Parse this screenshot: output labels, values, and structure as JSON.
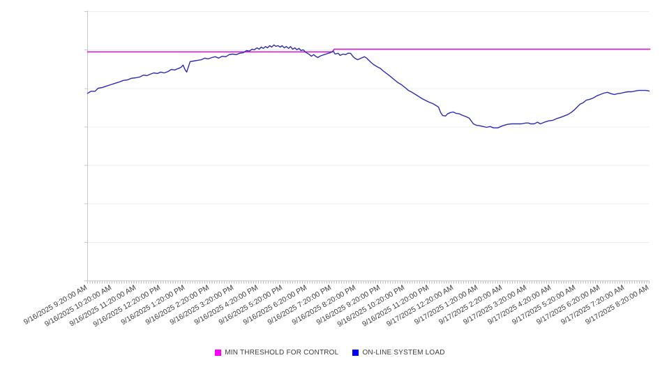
{
  "legend": {
    "items": [
      {
        "id": "threshold",
        "label": "MIN THRESHOLD FOR CONTROL",
        "swatch_color": "#ff00ff"
      },
      {
        "id": "load",
        "label": "ON-LINE SYSTEM LOAD",
        "swatch_color": "#0000ff"
      }
    ]
  },
  "chart_data": {
    "type": "line",
    "title": "",
    "xlabel": "",
    "ylabel": "",
    "grid": true,
    "legend_position": "bottom",
    "y_axis_labels_visible": false,
    "ylim": [
      0,
      100
    ],
    "x_hours_range": [
      0,
      23
    ],
    "x_tick_labels": [
      "9/16/2025 9:20:00 AM",
      "9/16/2025 10:20:00 AM",
      "9/16/2025 11:20:00 AM",
      "9/16/2025 12:20:00 PM",
      "9/16/2025 1:20:00 PM",
      "9/16/2025 2:20:00 PM",
      "9/16/2025 3:20:00 PM",
      "9/16/2025 4:20:00 PM",
      "9/16/2025 5:20:00 PM",
      "9/16/2025 6:20:00 PM",
      "9/16/2025 7:20:00 PM",
      "9/16/2025 8:20:00 PM",
      "9/16/2025 9:20:00 PM",
      "9/16/2025 10:20:00 PM",
      "9/16/2025 11:20:00 PM",
      "9/17/2025 12:20:00 AM",
      "9/17/2025 1:20:00 AM",
      "9/17/2025 2:20:00 AM",
      "9/17/2025 3:20:00 AM",
      "9/17/2025 4:20:00 AM",
      "9/17/2025 5:20:00 AM",
      "9/17/2025 6:20:00 AM",
      "9/17/2025 7:20:00 AM",
      "9/17/2025 8:20:00 AM"
    ],
    "colors": {
      "grid": "#ededed",
      "axis": "#c9c9c9",
      "tick": "#bdbdbd",
      "label": "#3c3c3c",
      "threshold_line": "#cc2fcc",
      "load_line": "#2b2bb8"
    },
    "series": [
      {
        "id": "threshold",
        "name": "MIN THRESHOLD FOR CONTROL",
        "color": "#cc2fcc",
        "width": 1.8,
        "points": [
          [
            0,
            85.0
          ],
          [
            10.03,
            85.0
          ],
          [
            10.1,
            86.0
          ],
          [
            23.03,
            86.0
          ]
        ]
      },
      {
        "id": "load",
        "name": "ON-LINE SYSTEM LOAD",
        "color": "#2b2bb8",
        "width": 1.4,
        "points": [
          [
            0,
            69.6
          ],
          [
            0.14,
            70.4
          ],
          [
            0.31,
            70.4
          ],
          [
            0.43,
            71.5
          ],
          [
            0.6,
            71.8
          ],
          [
            0.77,
            72.3
          ],
          [
            0.94,
            72.8
          ],
          [
            1.11,
            73.3
          ],
          [
            1.29,
            73.8
          ],
          [
            1.46,
            74.4
          ],
          [
            1.63,
            74.6
          ],
          [
            1.8,
            75.2
          ],
          [
            1.97,
            75.4
          ],
          [
            2.14,
            75.7
          ],
          [
            2.29,
            76.4
          ],
          [
            2.43,
            76.2
          ],
          [
            2.57,
            76.7
          ],
          [
            2.71,
            77.2
          ],
          [
            2.86,
            77.0
          ],
          [
            3.0,
            77.5
          ],
          [
            3.14,
            77.2
          ],
          [
            3.29,
            77.7
          ],
          [
            3.43,
            78.5
          ],
          [
            3.57,
            78.3
          ],
          [
            3.71,
            78.8
          ],
          [
            3.83,
            79.3
          ],
          [
            3.91,
            80.1
          ],
          [
            4.0,
            78.3
          ],
          [
            4.06,
            77.5
          ],
          [
            4.2,
            81.4
          ],
          [
            4.34,
            81.6
          ],
          [
            4.51,
            81.9
          ],
          [
            4.66,
            82.1
          ],
          [
            4.8,
            82.7
          ],
          [
            4.94,
            82.4
          ],
          [
            5.09,
            82.9
          ],
          [
            5.23,
            83.2
          ],
          [
            5.37,
            82.7
          ],
          [
            5.51,
            83.4
          ],
          [
            5.66,
            83.2
          ],
          [
            5.8,
            84.0
          ],
          [
            5.94,
            84.2
          ],
          [
            6.09,
            84.0
          ],
          [
            6.23,
            84.5
          ],
          [
            6.37,
            84.7
          ],
          [
            6.51,
            85.5
          ],
          [
            6.63,
            85.3
          ],
          [
            6.74,
            86.0
          ],
          [
            6.83,
            85.8
          ],
          [
            6.94,
            86.5
          ],
          [
            7.03,
            86.0
          ],
          [
            7.11,
            86.8
          ],
          [
            7.2,
            86.3
          ],
          [
            7.29,
            87.0
          ],
          [
            7.37,
            86.5
          ],
          [
            7.46,
            87.3
          ],
          [
            7.54,
            86.8
          ],
          [
            7.63,
            87.6
          ],
          [
            7.71,
            87.1
          ],
          [
            7.8,
            87.3
          ],
          [
            7.89,
            86.8
          ],
          [
            7.97,
            87.3
          ],
          [
            8.06,
            86.5
          ],
          [
            8.14,
            87.0
          ],
          [
            8.23,
            86.3
          ],
          [
            8.31,
            87.0
          ],
          [
            8.4,
            86.0
          ],
          [
            8.49,
            86.5
          ],
          [
            8.57,
            85.8
          ],
          [
            8.66,
            86.3
          ],
          [
            8.74,
            85.5
          ],
          [
            8.83,
            85.8
          ],
          [
            8.91,
            85.0
          ],
          [
            9.0,
            84.5
          ],
          [
            9.09,
            84.0
          ],
          [
            9.17,
            83.4
          ],
          [
            9.26,
            84.0
          ],
          [
            9.34,
            83.4
          ],
          [
            9.43,
            82.9
          ],
          [
            9.51,
            83.4
          ],
          [
            9.6,
            83.7
          ],
          [
            9.69,
            84.0
          ],
          [
            9.77,
            84.2
          ],
          [
            9.86,
            84.5
          ],
          [
            9.94,
            84.7
          ],
          [
            10.06,
            85.3
          ],
          [
            10.14,
            84.2
          ],
          [
            10.26,
            84.5
          ],
          [
            10.34,
            83.7
          ],
          [
            10.46,
            84.2
          ],
          [
            10.57,
            84.0
          ],
          [
            10.66,
            84.5
          ],
          [
            10.77,
            84.5
          ],
          [
            10.86,
            83.4
          ],
          [
            10.94,
            82.7
          ],
          [
            11.06,
            82.1
          ],
          [
            11.14,
            82.4
          ],
          [
            11.26,
            82.9
          ],
          [
            11.34,
            83.2
          ],
          [
            11.43,
            82.7
          ],
          [
            11.57,
            81.4
          ],
          [
            11.71,
            80.3
          ],
          [
            11.86,
            79.5
          ],
          [
            12.0,
            78.8
          ],
          [
            12.14,
            77.7
          ],
          [
            12.29,
            76.7
          ],
          [
            12.43,
            75.7
          ],
          [
            12.57,
            74.6
          ],
          [
            12.71,
            73.6
          ],
          [
            12.86,
            72.8
          ],
          [
            13.0,
            71.8
          ],
          [
            13.14,
            70.7
          ],
          [
            13.29,
            70.0
          ],
          [
            13.43,
            69.2
          ],
          [
            13.57,
            68.4
          ],
          [
            13.71,
            67.6
          ],
          [
            13.86,
            66.9
          ],
          [
            14.0,
            66.3
          ],
          [
            14.14,
            65.8
          ],
          [
            14.29,
            65.0
          ],
          [
            14.37,
            64.5
          ],
          [
            14.46,
            62.5
          ],
          [
            14.54,
            61.4
          ],
          [
            14.66,
            61.2
          ],
          [
            14.74,
            62.0
          ],
          [
            14.86,
            62.5
          ],
          [
            14.97,
            62.7
          ],
          [
            15.09,
            62.2
          ],
          [
            15.23,
            62.0
          ],
          [
            15.37,
            61.4
          ],
          [
            15.51,
            60.9
          ],
          [
            15.63,
            60.4
          ],
          [
            15.71,
            59.4
          ],
          [
            15.8,
            58.3
          ],
          [
            15.91,
            57.8
          ],
          [
            16.06,
            57.6
          ],
          [
            16.2,
            57.3
          ],
          [
            16.34,
            57.0
          ],
          [
            16.49,
            57.3
          ],
          [
            16.63,
            56.8
          ],
          [
            16.8,
            56.8
          ],
          [
            17.0,
            57.6
          ],
          [
            17.2,
            58.1
          ],
          [
            17.37,
            58.3
          ],
          [
            17.57,
            58.3
          ],
          [
            17.77,
            58.3
          ],
          [
            17.94,
            58.6
          ],
          [
            18.06,
            58.6
          ],
          [
            18.14,
            58.3
          ],
          [
            18.29,
            58.3
          ],
          [
            18.43,
            58.9
          ],
          [
            18.54,
            58.3
          ],
          [
            18.71,
            58.9
          ],
          [
            18.89,
            59.4
          ],
          [
            19.06,
            59.6
          ],
          [
            19.2,
            60.2
          ],
          [
            19.37,
            60.7
          ],
          [
            19.51,
            61.2
          ],
          [
            19.66,
            61.7
          ],
          [
            19.8,
            62.5
          ],
          [
            19.94,
            63.5
          ],
          [
            20.06,
            64.6
          ],
          [
            20.17,
            65.6
          ],
          [
            20.29,
            66.1
          ],
          [
            20.43,
            67.1
          ],
          [
            20.57,
            67.4
          ],
          [
            20.71,
            67.9
          ],
          [
            20.86,
            68.7
          ],
          [
            21.0,
            69.2
          ],
          [
            21.14,
            69.7
          ],
          [
            21.29,
            70.0
          ],
          [
            21.43,
            69.5
          ],
          [
            21.57,
            69.2
          ],
          [
            21.71,
            69.5
          ],
          [
            21.86,
            69.7
          ],
          [
            22.0,
            70.0
          ],
          [
            22.14,
            70.2
          ],
          [
            22.29,
            70.2
          ],
          [
            22.43,
            70.5
          ],
          [
            22.57,
            70.7
          ],
          [
            22.71,
            70.7
          ],
          [
            22.86,
            70.7
          ],
          [
            23.0,
            70.5
          ]
        ]
      }
    ]
  }
}
